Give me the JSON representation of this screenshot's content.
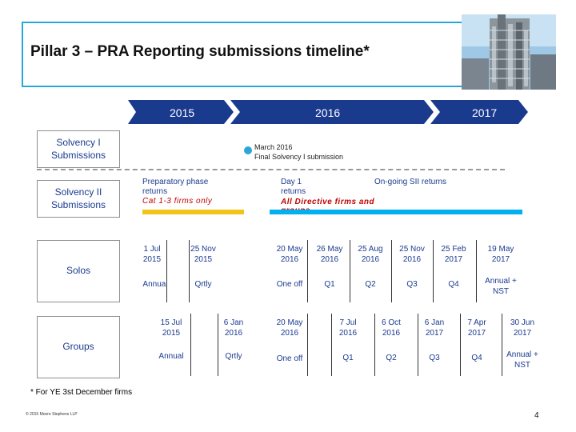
{
  "title": "Pillar 3 – PRA Reporting submissions timeline*",
  "years": {
    "y2015": "2015",
    "y2016": "2016",
    "y2017": "2017"
  },
  "rows": {
    "solvency1": "Solvency I Submissions",
    "solvency2": "Solvency II Submissions",
    "solos": "Solos",
    "groups": "Groups"
  },
  "solvency1_event": {
    "date": "March 2016",
    "text": "Final Solvency I submission"
  },
  "prep_phase": {
    "title": "Preparatory phase returns",
    "note": "Cat 1-3 firms only"
  },
  "day1": {
    "title": "Day 1 returns",
    "note": "All Directive firms and groups"
  },
  "ongoing": "On-going SII returns",
  "solos_cells": [
    {
      "date": "1 Jul 2015",
      "type": "Annual"
    },
    {
      "date": "25 Nov 2015",
      "type": "Qrtly"
    },
    {
      "date": "20 May 2016",
      "type": "One off"
    },
    {
      "date": "26 May 2016",
      "type": "Q1"
    },
    {
      "date": "25 Aug 2016",
      "type": "Q2"
    },
    {
      "date": "25 Nov 2016",
      "type": "Q3"
    },
    {
      "date": "25 Feb 2017",
      "type": "Q4"
    },
    {
      "date": "19 May 2017",
      "type": "Annual + NST"
    }
  ],
  "groups_cells": [
    {
      "date": "15 Jul 2015",
      "type": "Annual"
    },
    {
      "date": "6 Jan 2016",
      "type": "Qrtly"
    },
    {
      "date": "20 May 2016",
      "type": "One off"
    },
    {
      "date": "7 Jul 2016",
      "type": "Q1"
    },
    {
      "date": "6 Oct 2016",
      "type": "Q2"
    },
    {
      "date": "6 Jan 2017",
      "type": "Q3"
    },
    {
      "date": "7 Apr 2017",
      "type": "Q4"
    },
    {
      "date": "30 Jun 2017",
      "type": "Annual + NST"
    }
  ],
  "footnote": "* For YE 3st December firms",
  "copyright": "© 2015 Moore Stephens LLP",
  "page_number": "4",
  "colors": {
    "accent": "#29a8d8",
    "arrow": "#1a3a8e",
    "prep_bar": "#f0c419",
    "ongoing_bar": "#00b0f0",
    "red_note": "#c00000"
  }
}
